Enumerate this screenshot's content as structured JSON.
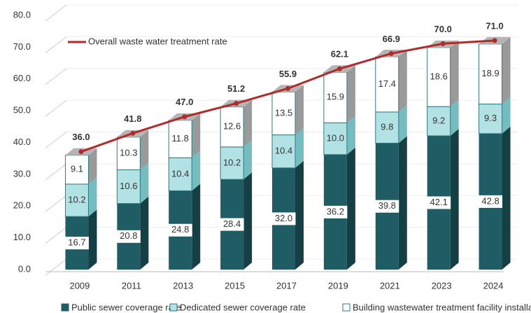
{
  "chart_data": {
    "type": "bar",
    "stacked": true,
    "categories": [
      "2009",
      "2011",
      "2013",
      "2015",
      "2017",
      "2019",
      "2021",
      "2023",
      "2024"
    ],
    "series": [
      {
        "name": "Public sewer coverage rate",
        "color": "#1f5c63",
        "side_color": "#143f44",
        "values": [
          16.7,
          20.8,
          24.8,
          28.4,
          32.0,
          36.2,
          39.8,
          42.1,
          42.8
        ],
        "value_labels": [
          "16.7",
          "20.8",
          "24.8",
          "28.4",
          "32.0",
          "36.2",
          "39.8",
          "42.1",
          "42.8"
        ]
      },
      {
        "name": "Dedicated sewer coverage rate",
        "color": "#b3e2e5",
        "side_color": "#74bcc0",
        "values": [
          10.2,
          10.6,
          10.4,
          10.2,
          10.4,
          10.0,
          9.8,
          9.2,
          9.3
        ],
        "value_labels": [
          "10.2",
          "10.6",
          "10.4",
          "10.2",
          "10.4",
          "10.0",
          "9.8",
          "9.2",
          "9.3"
        ]
      },
      {
        "name": "Building wastewater treatment facility installation rate",
        "color": "#ffffff",
        "side_color": "#9a9a9a",
        "values": [
          9.1,
          10.3,
          11.8,
          12.6,
          13.5,
          15.9,
          17.4,
          18.6,
          18.9
        ],
        "value_labels": [
          "9.1",
          "10.3",
          "11.8",
          "12.6",
          "13.5",
          "15.9",
          "17.4",
          "18.6",
          "18.9"
        ]
      },
      {
        "name": "Overall waste water treatment rate",
        "type": "line",
        "color": "#b22a2a",
        "values": [
          36.0,
          41.8,
          47.0,
          51.2,
          55.9,
          62.1,
          66.9,
          70.0,
          71.0
        ],
        "value_labels": [
          "36.0",
          "41.8",
          "47.0",
          "51.2",
          "55.9",
          "62.1",
          "66.9",
          "70.0",
          "71.0"
        ]
      }
    ],
    "ylim": [
      0,
      80
    ],
    "yticks": [
      {
        "value": 0,
        "label": "0.0"
      },
      {
        "value": 10,
        "label": "10.0"
      },
      {
        "value": 20,
        "label": "20.0"
      },
      {
        "value": 30,
        "label": "30.0"
      },
      {
        "value": 40,
        "label": "40.0"
      },
      {
        "value": 50,
        "label": "50.0"
      },
      {
        "value": 60,
        "label": "60.0"
      },
      {
        "value": 70,
        "label": "70.0"
      },
      {
        "value": 80,
        "label": "80.0"
      }
    ],
    "grid": true
  }
}
